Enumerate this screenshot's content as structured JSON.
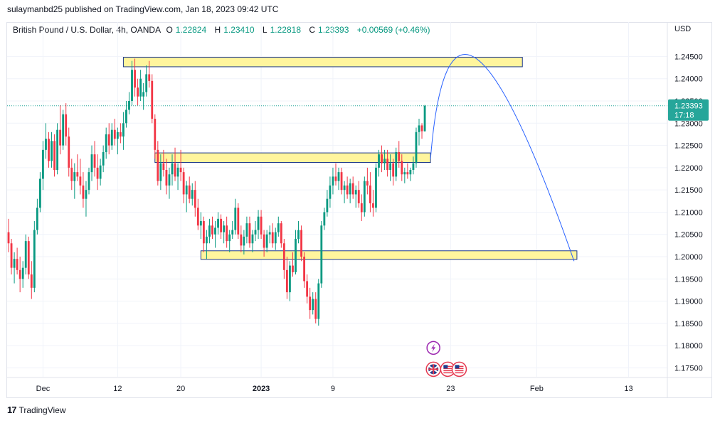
{
  "header": {
    "published": "sulaymanbd25 published on TradingView.com, Jan 18, 2023 09:42 UTC"
  },
  "legend": {
    "symbol": "British Pound / U.S. Dollar, 4h, OANDA",
    "open_label": "O",
    "open": "1.22824",
    "high_label": "H",
    "high": "1.23410",
    "low_label": "L",
    "low": "1.22818",
    "close_label": "C",
    "close": "1.23393",
    "change": "+0.00569 (+0.46%)"
  },
  "axis": {
    "currency": "USD"
  },
  "price_tag": {
    "value": "1.23393",
    "countdown": "17:18"
  },
  "footer": {
    "brand": "TradingView",
    "logo": "tradingview-logo-icon"
  },
  "colors": {
    "up": "#089981",
    "down": "#f23645",
    "zone_fill": "#fff59d",
    "zone_border": "#1e3a8a",
    "projection": "#2962ff",
    "price_tag": "#26a69a",
    "grid": "#f0f3fa"
  },
  "chart_data": {
    "type": "candlestick",
    "symbol": "GBPUSD",
    "timeframe": "4h",
    "ylim": [
      1.173,
      1.2505
    ],
    "y_ticks": [
      "1.17500",
      "1.18000",
      "1.18500",
      "1.19000",
      "1.19500",
      "1.20000",
      "1.20500",
      "1.21000",
      "1.21500",
      "1.22000",
      "1.22500",
      "1.23000",
      "1.23500",
      "1.24000",
      "1.24500"
    ],
    "x_ticks": [
      "Dec",
      "12",
      "20",
      "2023",
      "9",
      "23",
      "Feb",
      "13"
    ],
    "x_tick_bars": [
      12,
      38,
      60,
      88,
      113,
      154,
      184,
      216
    ],
    "total_slots": 230,
    "last_price": 1.23393,
    "candles": [
      [
        1.2055,
        1.2085,
        1.201,
        1.203
      ],
      [
        1.203,
        1.204,
        1.196,
        1.1975
      ],
      [
        1.1975,
        1.201,
        1.194,
        1.1995
      ],
      [
        1.1995,
        1.202,
        1.196,
        1.197
      ],
      [
        1.197,
        1.2,
        1.192,
        1.195
      ],
      [
        1.195,
        1.199,
        1.193,
        1.1975
      ],
      [
        1.1975,
        1.205,
        1.196,
        1.2035
      ],
      [
        1.2035,
        1.2045,
        1.195,
        1.196
      ],
      [
        1.196,
        1.199,
        1.1905,
        1.193
      ],
      [
        1.193,
        1.208,
        1.192,
        1.206
      ],
      [
        1.206,
        1.213,
        1.205,
        1.211
      ],
      [
        1.211,
        1.219,
        1.21,
        1.2175
      ],
      [
        1.2175,
        1.226,
        1.215,
        1.224
      ],
      [
        1.224,
        1.23,
        1.222,
        1.2265
      ],
      [
        1.2265,
        1.228,
        1.22,
        1.2215
      ],
      [
        1.2215,
        1.228,
        1.22,
        1.226
      ],
      [
        1.226,
        1.2275,
        1.218,
        1.2195
      ],
      [
        1.2195,
        1.23,
        1.2185,
        1.2285
      ],
      [
        1.2285,
        1.234,
        1.223,
        1.225
      ],
      [
        1.225,
        1.233,
        1.224,
        1.232
      ],
      [
        1.232,
        1.2345,
        1.225,
        1.227
      ],
      [
        1.227,
        1.229,
        1.218,
        1.22
      ],
      [
        1.22,
        1.222,
        1.215,
        1.217
      ],
      [
        1.217,
        1.221,
        1.213,
        1.219
      ],
      [
        1.219,
        1.223,
        1.217,
        1.218
      ],
      [
        1.218,
        1.222,
        1.214,
        1.216
      ],
      [
        1.216,
        1.219,
        1.211,
        1.213
      ],
      [
        1.213,
        1.217,
        1.209,
        1.215
      ],
      [
        1.215,
        1.22,
        1.214,
        1.219
      ],
      [
        1.219,
        1.225,
        1.217,
        1.223
      ],
      [
        1.223,
        1.226,
        1.218,
        1.22
      ],
      [
        1.22,
        1.223,
        1.215,
        1.2175
      ],
      [
        1.2175,
        1.222,
        1.216,
        1.2205
      ],
      [
        1.2205,
        1.225,
        1.219,
        1.2235
      ],
      [
        1.2235,
        1.229,
        1.222,
        1.2275
      ],
      [
        1.2275,
        1.23,
        1.223,
        1.225
      ],
      [
        1.225,
        1.23,
        1.224,
        1.2285
      ],
      [
        1.2285,
        1.231,
        1.225,
        1.2265
      ],
      [
        1.2265,
        1.229,
        1.223,
        1.228
      ],
      [
        1.228,
        1.23,
        1.2255,
        1.227
      ],
      [
        1.227,
        1.2325,
        1.224,
        1.23
      ],
      [
        1.23,
        1.235,
        1.229,
        1.233
      ],
      [
        1.233,
        1.237,
        1.232,
        1.235
      ],
      [
        1.235,
        1.244,
        1.234,
        1.242
      ],
      [
        1.242,
        1.2445,
        1.236,
        1.238
      ],
      [
        1.238,
        1.24,
        1.234,
        1.236
      ],
      [
        1.236,
        1.242,
        1.235,
        1.24
      ],
      [
        1.236,
        1.239,
        1.233,
        1.237
      ],
      [
        1.237,
        1.243,
        1.236,
        1.241
      ],
      [
        1.241,
        1.244,
        1.238,
        1.2395
      ],
      [
        1.2395,
        1.241,
        1.23,
        1.231
      ],
      [
        1.231,
        1.232,
        1.222,
        1.224
      ],
      [
        1.224,
        1.226,
        1.216,
        1.217
      ],
      [
        1.217,
        1.223,
        1.215,
        1.221
      ],
      [
        1.221,
        1.224,
        1.218,
        1.2195
      ],
      [
        1.2195,
        1.222,
        1.214,
        1.216
      ],
      [
        1.216,
        1.22,
        1.213,
        1.2185
      ],
      [
        1.2185,
        1.223,
        1.216,
        1.221
      ],
      [
        1.221,
        1.2245,
        1.217,
        1.218
      ],
      [
        1.218,
        1.221,
        1.215,
        1.22
      ],
      [
        1.22,
        1.224,
        1.217,
        1.219
      ],
      [
        1.219,
        1.22,
        1.212,
        1.214
      ],
      [
        1.214,
        1.217,
        1.21,
        1.216
      ],
      [
        1.216,
        1.218,
        1.212,
        1.213
      ],
      [
        1.213,
        1.2165,
        1.2115,
        1.215
      ],
      [
        1.215,
        1.217,
        1.209,
        1.211
      ],
      [
        1.211,
        1.213,
        1.206,
        1.207
      ],
      [
        1.207,
        1.21,
        1.204,
        1.208
      ],
      [
        1.208,
        1.209,
        1.201,
        1.203
      ],
      [
        1.203,
        1.206,
        1.1995,
        1.2045
      ],
      [
        1.2045,
        1.2085,
        1.203,
        1.207
      ],
      [
        1.207,
        1.209,
        1.204,
        1.205
      ],
      [
        1.205,
        1.208,
        1.202,
        1.2065
      ],
      [
        1.2065,
        1.21,
        1.205,
        1.2085
      ],
      [
        1.2085,
        1.2095,
        1.204,
        1.2055
      ],
      [
        1.2055,
        1.208,
        1.203,
        1.207
      ],
      [
        1.207,
        1.209,
        1.202,
        1.2035
      ],
      [
        1.2035,
        1.206,
        1.201,
        1.205
      ],
      [
        1.205,
        1.208,
        1.204,
        1.206
      ],
      [
        1.206,
        1.213,
        1.205,
        1.211
      ],
      [
        1.211,
        1.212,
        1.204,
        1.205
      ],
      [
        1.205,
        1.207,
        1.201,
        1.2025
      ],
      [
        1.2025,
        1.206,
        1.2005,
        1.2045
      ],
      [
        1.2045,
        1.209,
        1.203,
        1.2075
      ],
      [
        1.2075,
        1.209,
        1.202,
        1.203
      ],
      [
        1.203,
        1.206,
        1.201,
        1.205
      ],
      [
        1.205,
        1.208,
        1.2035,
        1.206
      ],
      [
        1.206,
        1.2105,
        1.204,
        1.209
      ],
      [
        1.209,
        1.2105,
        1.204,
        1.205
      ],
      [
        1.205,
        1.206,
        1.2,
        1.202
      ],
      [
        1.202,
        1.206,
        1.201,
        1.205
      ],
      [
        1.205,
        1.207,
        1.203,
        1.2055
      ],
      [
        1.2055,
        1.2075,
        1.202,
        1.203
      ],
      [
        1.203,
        1.2065,
        1.2015,
        1.2055
      ],
      [
        1.2055,
        1.209,
        1.2045,
        1.2075
      ],
      [
        1.2075,
        1.208,
        1.202,
        1.203
      ],
      [
        1.203,
        1.204,
        1.195,
        1.197
      ],
      [
        1.197,
        1.2,
        1.1905,
        1.192
      ],
      [
        1.192,
        1.199,
        1.19,
        1.198
      ],
      [
        1.198,
        1.201,
        1.1955,
        1.1965
      ],
      [
        1.1965,
        1.206,
        1.196,
        1.204
      ],
      [
        1.204,
        1.208,
        1.203,
        1.206
      ],
      [
        1.206,
        1.207,
        1.199,
        1.2
      ],
      [
        1.2,
        1.201,
        1.193,
        1.1945
      ],
      [
        1.1945,
        1.196,
        1.1895,
        1.191
      ],
      [
        1.191,
        1.193,
        1.186,
        1.188
      ],
      [
        1.188,
        1.192,
        1.187,
        1.1905
      ],
      [
        1.1905,
        1.192,
        1.185,
        1.186
      ],
      [
        1.186,
        1.195,
        1.1845,
        1.194
      ],
      [
        1.194,
        1.208,
        1.193,
        1.207
      ],
      [
        1.207,
        1.211,
        1.206,
        1.21
      ],
      [
        1.21,
        1.215,
        1.209,
        1.213
      ],
      [
        1.213,
        1.218,
        1.211,
        1.216
      ],
      [
        1.216,
        1.22,
        1.214,
        1.218
      ],
      [
        1.218,
        1.221,
        1.216,
        1.217
      ],
      [
        1.217,
        1.22,
        1.215,
        1.219
      ],
      [
        1.219,
        1.22,
        1.214,
        1.215
      ],
      [
        1.215,
        1.217,
        1.212,
        1.216
      ],
      [
        1.216,
        1.218,
        1.213,
        1.214
      ],
      [
        1.214,
        1.2175,
        1.212,
        1.2165
      ],
      [
        1.2165,
        1.218,
        1.213,
        1.214
      ],
      [
        1.214,
        1.216,
        1.211,
        1.215
      ],
      [
        1.215,
        1.217,
        1.211,
        1.212
      ],
      [
        1.212,
        1.214,
        1.208,
        1.21
      ],
      [
        1.21,
        1.218,
        1.209,
        1.217
      ],
      [
        1.217,
        1.22,
        1.214,
        1.216
      ],
      [
        1.216,
        1.219,
        1.21,
        1.212
      ],
      [
        1.212,
        1.215,
        1.209,
        1.211
      ],
      [
        1.211,
        1.221,
        1.21,
        1.22
      ],
      [
        1.22,
        1.224,
        1.218,
        1.223
      ],
      [
        1.223,
        1.225,
        1.219,
        1.221
      ],
      [
        1.221,
        1.224,
        1.2195,
        1.222
      ],
      [
        1.222,
        1.224,
        1.218,
        1.2195
      ],
      [
        1.2195,
        1.223,
        1.217,
        1.221
      ],
      [
        1.221,
        1.222,
        1.216,
        1.218
      ],
      [
        1.218,
        1.2245,
        1.217,
        1.2235
      ],
      [
        1.2235,
        1.226,
        1.22,
        1.2215
      ],
      [
        1.2215,
        1.223,
        1.217,
        1.2185
      ],
      [
        1.2185,
        1.22,
        1.2165,
        1.219
      ],
      [
        1.219,
        1.221,
        1.2175,
        1.2185
      ],
      [
        1.2185,
        1.22,
        1.217,
        1.2195
      ],
      [
        1.2195,
        1.2225,
        1.2185,
        1.221
      ],
      [
        1.221,
        1.229,
        1.22,
        1.228
      ],
      [
        1.228,
        1.231,
        1.225,
        1.2295
      ],
      [
        1.2295,
        1.23,
        1.2265,
        1.2282
      ],
      [
        1.2282,
        1.2341,
        1.2281,
        1.2339
      ]
    ],
    "zones": [
      {
        "from_bar": 40,
        "to_bar": 179,
        "top": 1.2445,
        "bottom": 1.243
      },
      {
        "from_bar": 51,
        "to_bar": 147,
        "top": 1.223,
        "bottom": 1.2215
      },
      {
        "from_bar": 67,
        "to_bar": 198,
        "top": 1.201,
        "bottom": 1.1997
      }
    ],
    "projection": [
      {
        "bar": 147,
        "price": 1.222
      },
      {
        "bar": 163,
        "price": 1.2445
      },
      {
        "bar": 197,
        "price": 1.199
      }
    ],
    "events": [
      {
        "bar": 148,
        "price": 1.1795,
        "icon": "lightning-icon"
      },
      {
        "bar": 148,
        "price": 1.1747,
        "icon": "uk-flag-icon"
      },
      {
        "bar": 153,
        "price": 1.1747,
        "icon": "us-flag-icon"
      },
      {
        "bar": 157,
        "price": 1.1747,
        "icon": "us-flag-icon"
      }
    ]
  }
}
